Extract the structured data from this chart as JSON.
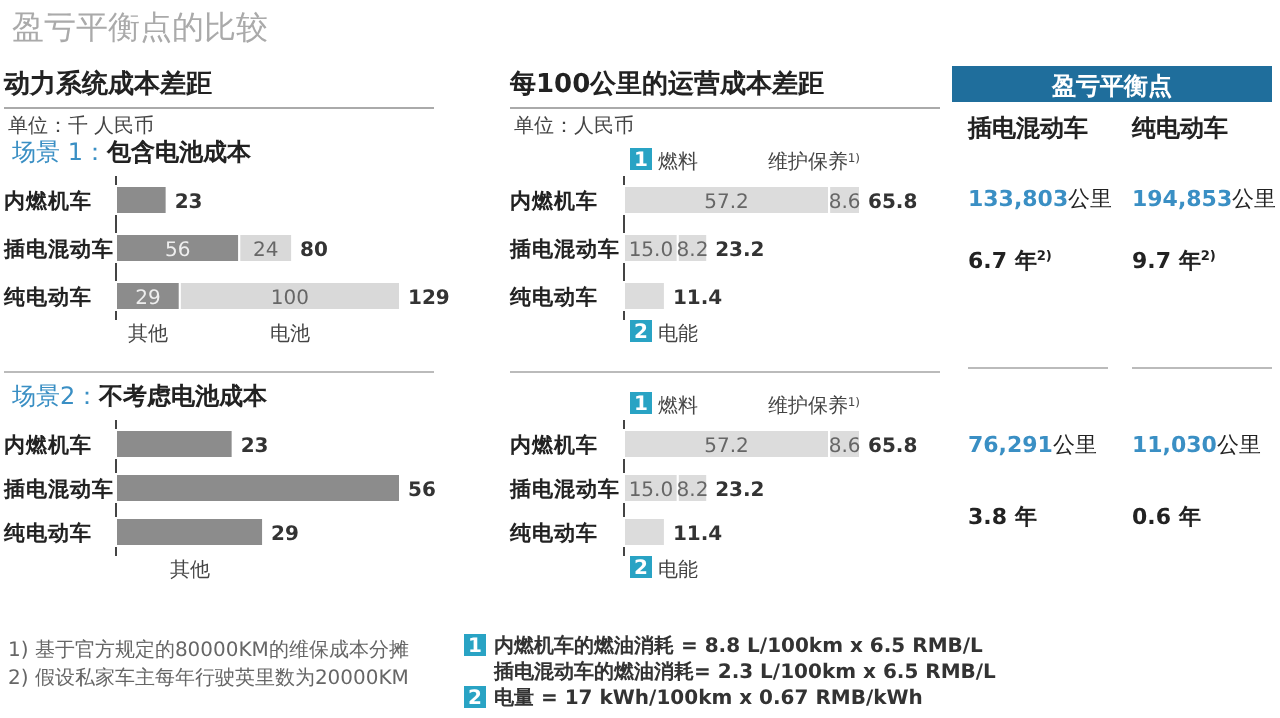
{
  "chart_data": [
    {
      "type": "other",
      "title": "盈亏平衡点的比较",
      "annotations": [
        "1) 基于官方规定的80000KM的维保成本分摊",
        "2) 假设私家车主每年行驶英里数为20000KM",
        "1",
        "内燃机车的燃油消耗 = 8.8 L/100km x 6.5 RMB/L",
        "插电混动车的燃油消耗= 2.3 L/100km x 6.5 RMB/L",
        "2",
        "电量 = 17 kWh/100km x 0.67 RMB/kWh"
      ]
    },
    {
      "type": "bar",
      "orientation": "horizontal",
      "stacked": true,
      "title": "动力系统成本差距",
      "subtitle": "单位：千 人民币",
      "annotations": [
        "场景 1：",
        "包含电池成本"
      ],
      "categories": [
        "内燃机车",
        "插电混动车",
        "纯电动车"
      ],
      "legend": "bottom",
      "series": [
        {
          "name": "其他",
          "color": "#8c8c8c",
          "values": [
            23,
            56,
            29
          ],
          "value_labels": [
            null,
            "56",
            "29"
          ]
        },
        {
          "name": "电池",
          "color": "#d9d9d9",
          "values": [
            null,
            24,
            100
          ],
          "value_labels": [
            null,
            "24",
            "100"
          ]
        }
      ],
      "totals": [
        "23",
        "80",
        "129"
      ]
    },
    {
      "type": "bar",
      "orientation": "horizontal",
      "annotations": [
        "场景2：",
        "不考虑电池成本"
      ],
      "categories": [
        "内燃机车",
        "插电混动车",
        "纯电动车"
      ],
      "legend": "bottom",
      "data_labels": true,
      "series": [
        {
          "name": "其他",
          "color": "#8c8c8c",
          "values": [
            23,
            56,
            29
          ]
        }
      ]
    },
    {
      "type": "bar",
      "orientation": "horizontal",
      "stacked": true,
      "title": "每100公里的运营成本差距",
      "subtitle": "单位：人民币",
      "annotations": [
        "1",
        "2"
      ],
      "categories": [
        "内燃机车",
        "插电混动车",
        "纯电动车"
      ],
      "legend": "top",
      "series": [
        {
          "name": "燃料",
          "color": "#dcdcdc",
          "values": [
            57.2,
            15.0,
            null
          ],
          "value_labels": [
            "57.2",
            "15.0",
            null
          ]
        },
        {
          "name": "电能",
          "color": "#dcdcdc",
          "values": [
            null,
            null,
            11.4
          ]
        },
        {
          "name": "维护保养$^{1)}$",
          "color": "#dcdcdc",
          "values": [
            8.6,
            8.2,
            null
          ],
          "value_labels": [
            "8.6",
            "8.2",
            null
          ]
        }
      ],
      "totals": [
        "65.8",
        "23.2",
        "11.4"
      ]
    },
    {
      "type": "bar",
      "orientation": "horizontal",
      "stacked": true,
      "annotations": [
        "1",
        "2"
      ],
      "categories": [
        "内燃机车",
        "插电混动车",
        "纯电动车"
      ],
      "legend": "top",
      "series": [
        {
          "name": "燃料",
          "color": "#dcdcdc",
          "values": [
            57.2,
            15.0,
            null
          ],
          "value_labels": [
            "57.2",
            "15.0",
            null
          ]
        },
        {
          "name": "电能",
          "color": "#dcdcdc",
          "values": [
            null,
            null,
            11.4
          ]
        },
        {
          "name": "维护保养$^{1)}$",
          "color": "#dcdcdc",
          "values": [
            8.6,
            8.2,
            null
          ],
          "value_labels": [
            "8.6",
            "8.2",
            null
          ]
        }
      ],
      "totals": [
        "65.8",
        "23.2",
        "11.4"
      ]
    },
    {
      "type": "other",
      "title": "盈亏平衡点",
      "annotations": [
        "插电混动车",
        "纯电动车",
        "133,803公里",
        "194,853公里",
        "6.7 年$^{2)}$",
        "9.7 年$^{2)}$",
        "76,291公里",
        "11,030公里",
        "3.8 年",
        "0.6 年"
      ]
    }
  ]
}
